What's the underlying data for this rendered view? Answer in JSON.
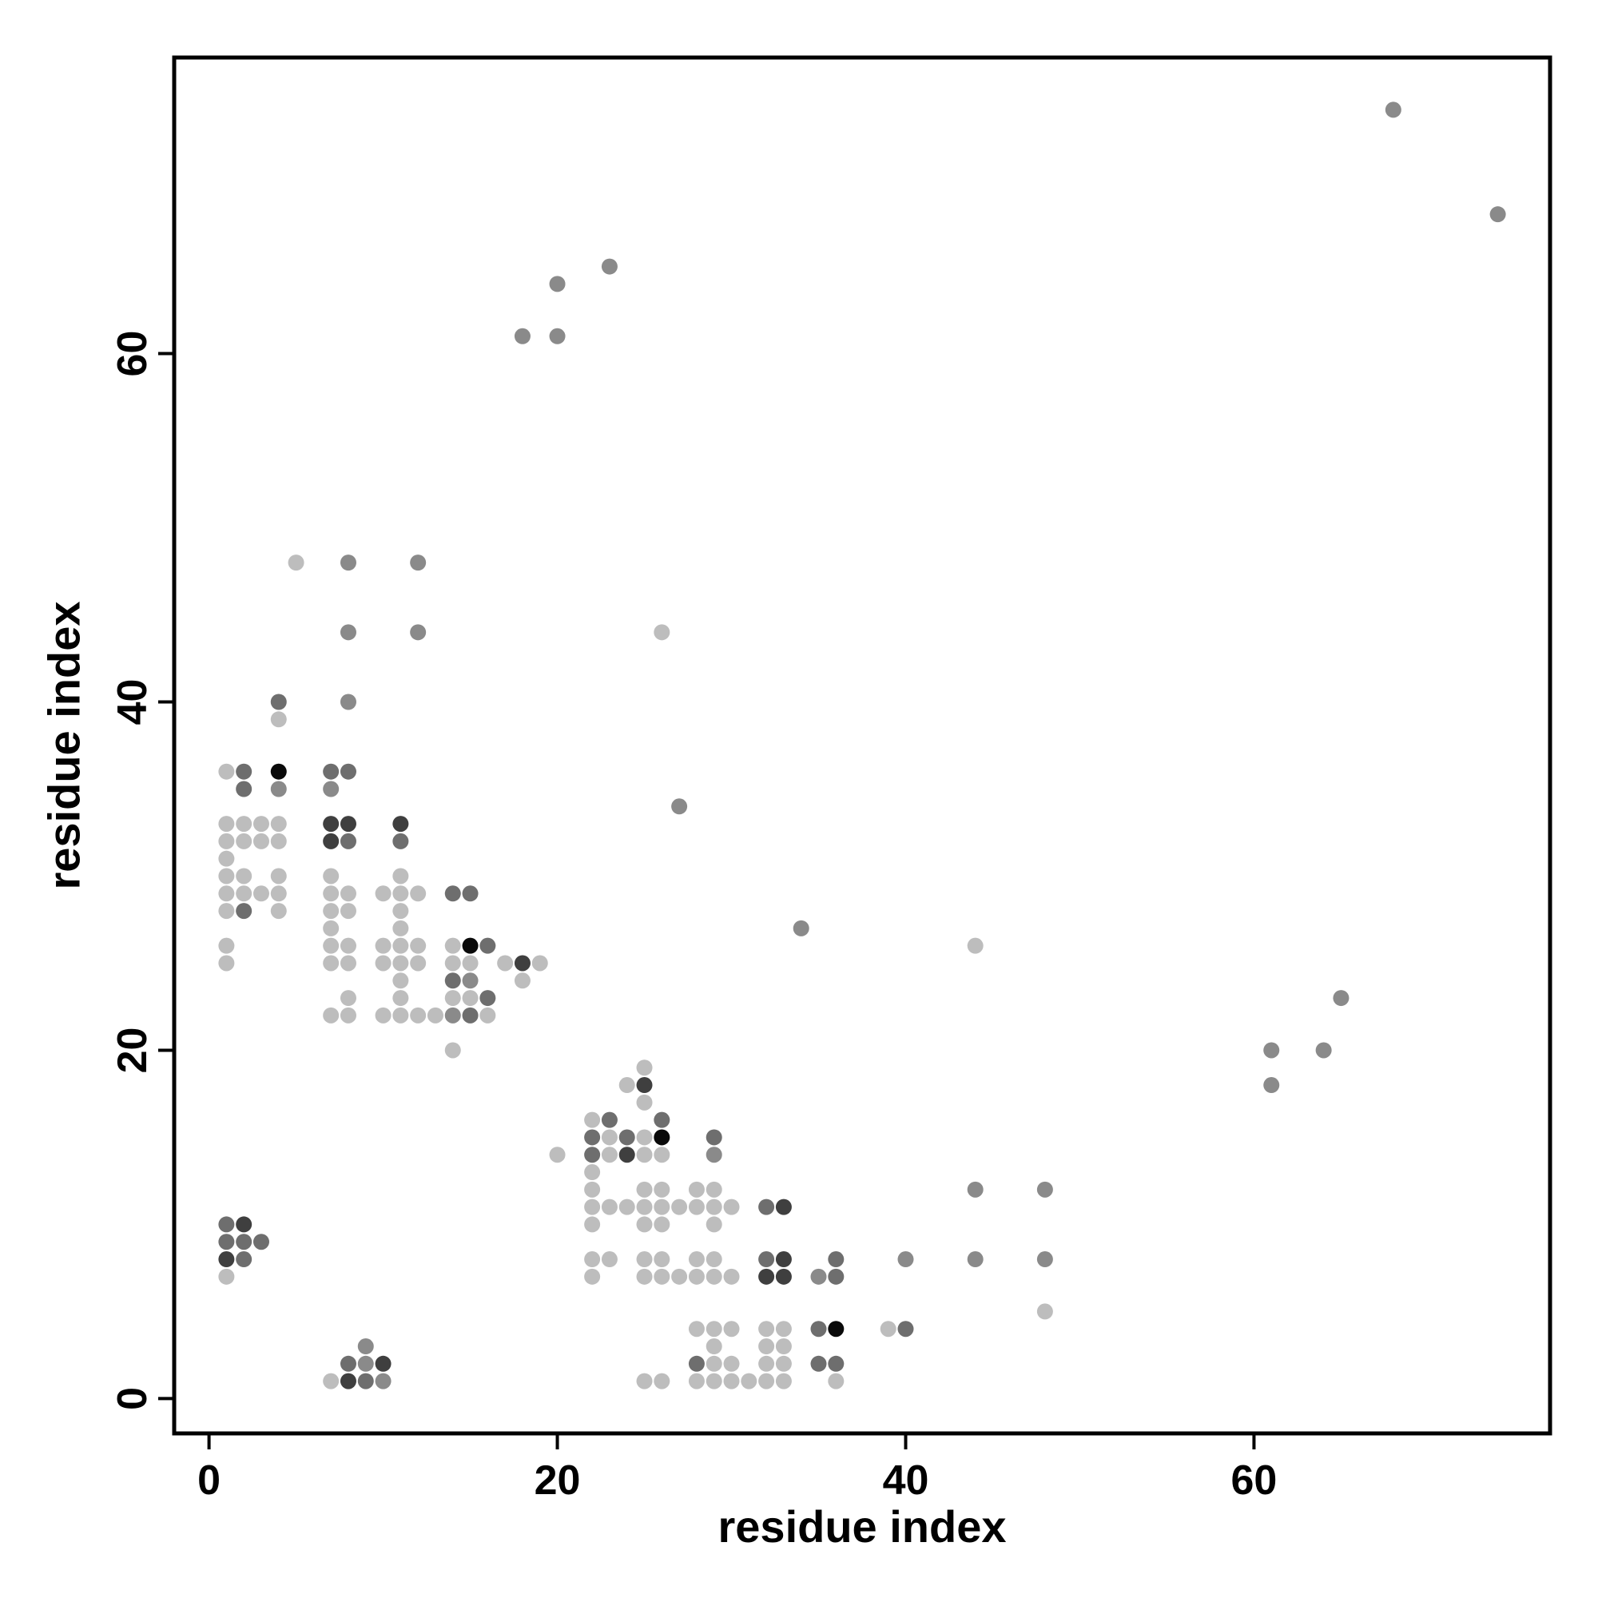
{
  "chart_data": {
    "type": "scatter",
    "title": "",
    "xlabel": "residue index",
    "ylabel": "residue index",
    "xlim": [
      -2,
      77
    ],
    "ylim": [
      -2,
      77
    ],
    "xticks": [
      0,
      20,
      40,
      60
    ],
    "yticks": [
      0,
      20,
      40,
      60
    ],
    "grid": false,
    "legend": "none",
    "colors": {
      "light": "#bdbdbd",
      "mid": "#8a8a8a",
      "dark": "#6e6e6e",
      "darker": "#3f3f3f",
      "black": "#0a0a0a"
    },
    "points": [
      [
        68,
        74,
        "mid"
      ],
      [
        74,
        68,
        "mid"
      ],
      [
        23,
        65,
        "mid"
      ],
      [
        20,
        64,
        "mid"
      ],
      [
        18,
        61,
        "mid"
      ],
      [
        20,
        61,
        "mid"
      ],
      [
        5,
        48,
        "light"
      ],
      [
        8,
        48,
        "mid"
      ],
      [
        12,
        48,
        "mid"
      ],
      [
        8,
        44,
        "mid"
      ],
      [
        12,
        44,
        "mid"
      ],
      [
        26,
        44,
        "light"
      ],
      [
        4,
        40,
        "dark"
      ],
      [
        8,
        40,
        "mid"
      ],
      [
        4,
        39,
        "light"
      ],
      [
        1,
        36,
        "light"
      ],
      [
        2,
        36,
        "dark"
      ],
      [
        4,
        36,
        "black"
      ],
      [
        7,
        36,
        "dark"
      ],
      [
        8,
        36,
        "dark"
      ],
      [
        2,
        35,
        "dark"
      ],
      [
        4,
        35,
        "mid"
      ],
      [
        7,
        35,
        "mid"
      ],
      [
        27,
        34,
        "mid"
      ],
      [
        1,
        33,
        "light"
      ],
      [
        2,
        33,
        "light"
      ],
      [
        3,
        33,
        "light"
      ],
      [
        4,
        33,
        "light"
      ],
      [
        7,
        33,
        "darker"
      ],
      [
        8,
        33,
        "darker"
      ],
      [
        11,
        33,
        "darker"
      ],
      [
        1,
        32,
        "light"
      ],
      [
        2,
        32,
        "light"
      ],
      [
        3,
        32,
        "light"
      ],
      [
        4,
        32,
        "light"
      ],
      [
        7,
        32,
        "darker"
      ],
      [
        8,
        32,
        "dark"
      ],
      [
        11,
        32,
        "dark"
      ],
      [
        1,
        31,
        "light"
      ],
      [
        1,
        30,
        "light"
      ],
      [
        2,
        30,
        "light"
      ],
      [
        4,
        30,
        "light"
      ],
      [
        7,
        30,
        "light"
      ],
      [
        11,
        30,
        "light"
      ],
      [
        1,
        29,
        "light"
      ],
      [
        2,
        29,
        "light"
      ],
      [
        3,
        29,
        "light"
      ],
      [
        4,
        29,
        "light"
      ],
      [
        7,
        29,
        "light"
      ],
      [
        8,
        29,
        "light"
      ],
      [
        10,
        29,
        "light"
      ],
      [
        11,
        29,
        "light"
      ],
      [
        12,
        29,
        "light"
      ],
      [
        14,
        29,
        "dark"
      ],
      [
        15,
        29,
        "dark"
      ],
      [
        1,
        28,
        "light"
      ],
      [
        2,
        28,
        "dark"
      ],
      [
        4,
        28,
        "light"
      ],
      [
        7,
        28,
        "light"
      ],
      [
        8,
        28,
        "light"
      ],
      [
        11,
        28,
        "light"
      ],
      [
        7,
        27,
        "light"
      ],
      [
        11,
        27,
        "light"
      ],
      [
        34,
        27,
        "mid"
      ],
      [
        1,
        26,
        "light"
      ],
      [
        7,
        26,
        "light"
      ],
      [
        8,
        26,
        "light"
      ],
      [
        10,
        26,
        "light"
      ],
      [
        11,
        26,
        "light"
      ],
      [
        12,
        26,
        "light"
      ],
      [
        14,
        26,
        "light"
      ],
      [
        15,
        26,
        "black"
      ],
      [
        16,
        26,
        "dark"
      ],
      [
        44,
        26,
        "light"
      ],
      [
        1,
        25,
        "light"
      ],
      [
        7,
        25,
        "light"
      ],
      [
        8,
        25,
        "light"
      ],
      [
        10,
        25,
        "light"
      ],
      [
        11,
        25,
        "light"
      ],
      [
        12,
        25,
        "light"
      ],
      [
        14,
        25,
        "light"
      ],
      [
        15,
        25,
        "light"
      ],
      [
        17,
        25,
        "light"
      ],
      [
        18,
        25,
        "darker"
      ],
      [
        19,
        25,
        "light"
      ],
      [
        11,
        24,
        "light"
      ],
      [
        14,
        24,
        "dark"
      ],
      [
        15,
        24,
        "mid"
      ],
      [
        18,
        24,
        "light"
      ],
      [
        8,
        23,
        "light"
      ],
      [
        11,
        23,
        "light"
      ],
      [
        14,
        23,
        "light"
      ],
      [
        15,
        23,
        "light"
      ],
      [
        16,
        23,
        "dark"
      ],
      [
        65,
        23,
        "mid"
      ],
      [
        7,
        22,
        "light"
      ],
      [
        8,
        22,
        "light"
      ],
      [
        10,
        22,
        "light"
      ],
      [
        11,
        22,
        "light"
      ],
      [
        12,
        22,
        "light"
      ],
      [
        13,
        22,
        "light"
      ],
      [
        14,
        22,
        "mid"
      ],
      [
        15,
        22,
        "dark"
      ],
      [
        16,
        22,
        "light"
      ],
      [
        14,
        20,
        "light"
      ],
      [
        61,
        20,
        "mid"
      ],
      [
        64,
        20,
        "mid"
      ],
      [
        25,
        19,
        "light"
      ],
      [
        24,
        18,
        "light"
      ],
      [
        25,
        18,
        "darker"
      ],
      [
        61,
        18,
        "mid"
      ],
      [
        25,
        17,
        "light"
      ],
      [
        22,
        16,
        "light"
      ],
      [
        23,
        16,
        "dark"
      ],
      [
        26,
        16,
        "dark"
      ],
      [
        22,
        15,
        "dark"
      ],
      [
        23,
        15,
        "light"
      ],
      [
        24,
        15,
        "dark"
      ],
      [
        25,
        15,
        "light"
      ],
      [
        26,
        15,
        "black"
      ],
      [
        29,
        15,
        "dark"
      ],
      [
        20,
        14,
        "light"
      ],
      [
        22,
        14,
        "dark"
      ],
      [
        23,
        14,
        "light"
      ],
      [
        24,
        14,
        "darker"
      ],
      [
        25,
        14,
        "light"
      ],
      [
        26,
        14,
        "light"
      ],
      [
        29,
        14,
        "mid"
      ],
      [
        22,
        13,
        "light"
      ],
      [
        22,
        12,
        "light"
      ],
      [
        25,
        12,
        "light"
      ],
      [
        26,
        12,
        "light"
      ],
      [
        28,
        12,
        "light"
      ],
      [
        29,
        12,
        "light"
      ],
      [
        44,
        12,
        "mid"
      ],
      [
        48,
        12,
        "mid"
      ],
      [
        22,
        11,
        "light"
      ],
      [
        23,
        11,
        "light"
      ],
      [
        24,
        11,
        "light"
      ],
      [
        25,
        11,
        "light"
      ],
      [
        26,
        11,
        "light"
      ],
      [
        27,
        11,
        "light"
      ],
      [
        28,
        11,
        "light"
      ],
      [
        29,
        11,
        "light"
      ],
      [
        30,
        11,
        "light"
      ],
      [
        32,
        11,
        "dark"
      ],
      [
        33,
        11,
        "darker"
      ],
      [
        1,
        10,
        "dark"
      ],
      [
        2,
        10,
        "darker"
      ],
      [
        22,
        10,
        "light"
      ],
      [
        25,
        10,
        "light"
      ],
      [
        26,
        10,
        "light"
      ],
      [
        29,
        10,
        "light"
      ],
      [
        1,
        9,
        "dark"
      ],
      [
        2,
        9,
        "dark"
      ],
      [
        3,
        9,
        "dark"
      ],
      [
        1,
        8,
        "darker"
      ],
      [
        2,
        8,
        "dark"
      ],
      [
        22,
        8,
        "light"
      ],
      [
        23,
        8,
        "light"
      ],
      [
        25,
        8,
        "light"
      ],
      [
        26,
        8,
        "light"
      ],
      [
        28,
        8,
        "light"
      ],
      [
        29,
        8,
        "light"
      ],
      [
        32,
        8,
        "dark"
      ],
      [
        33,
        8,
        "darker"
      ],
      [
        36,
        8,
        "dark"
      ],
      [
        40,
        8,
        "mid"
      ],
      [
        44,
        8,
        "mid"
      ],
      [
        48,
        8,
        "mid"
      ],
      [
        1,
        7,
        "light"
      ],
      [
        22,
        7,
        "light"
      ],
      [
        25,
        7,
        "light"
      ],
      [
        26,
        7,
        "light"
      ],
      [
        27,
        7,
        "light"
      ],
      [
        28,
        7,
        "light"
      ],
      [
        29,
        7,
        "light"
      ],
      [
        30,
        7,
        "light"
      ],
      [
        32,
        7,
        "darker"
      ],
      [
        33,
        7,
        "darker"
      ],
      [
        35,
        7,
        "mid"
      ],
      [
        36,
        7,
        "dark"
      ],
      [
        48,
        5,
        "light"
      ],
      [
        28,
        4,
        "light"
      ],
      [
        29,
        4,
        "light"
      ],
      [
        30,
        4,
        "light"
      ],
      [
        32,
        4,
        "light"
      ],
      [
        33,
        4,
        "light"
      ],
      [
        35,
        4,
        "dark"
      ],
      [
        36,
        4,
        "black"
      ],
      [
        39,
        4,
        "light"
      ],
      [
        40,
        4,
        "dark"
      ],
      [
        9,
        3,
        "mid"
      ],
      [
        29,
        3,
        "light"
      ],
      [
        32,
        3,
        "light"
      ],
      [
        33,
        3,
        "light"
      ],
      [
        8,
        2,
        "dark"
      ],
      [
        9,
        2,
        "mid"
      ],
      [
        10,
        2,
        "darker"
      ],
      [
        28,
        2,
        "dark"
      ],
      [
        29,
        2,
        "light"
      ],
      [
        30,
        2,
        "light"
      ],
      [
        32,
        2,
        "light"
      ],
      [
        33,
        2,
        "light"
      ],
      [
        35,
        2,
        "dark"
      ],
      [
        36,
        2,
        "dark"
      ],
      [
        7,
        1,
        "light"
      ],
      [
        8,
        1,
        "darker"
      ],
      [
        9,
        1,
        "dark"
      ],
      [
        10,
        1,
        "mid"
      ],
      [
        25,
        1,
        "light"
      ],
      [
        26,
        1,
        "light"
      ],
      [
        28,
        1,
        "light"
      ],
      [
        29,
        1,
        "light"
      ],
      [
        30,
        1,
        "light"
      ],
      [
        31,
        1,
        "light"
      ],
      [
        32,
        1,
        "light"
      ],
      [
        33,
        1,
        "light"
      ],
      [
        36,
        1,
        "light"
      ]
    ]
  }
}
